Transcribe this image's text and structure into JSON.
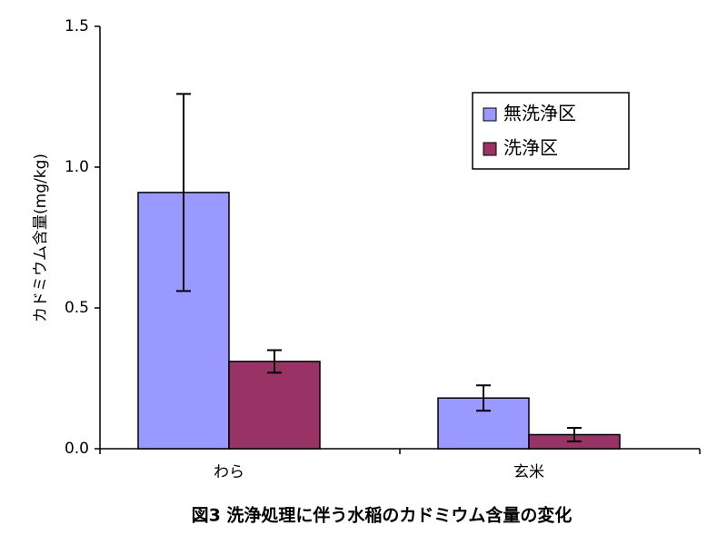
{
  "chart_data": {
    "type": "bar",
    "title": "図3 洗浄処理に伴う水稲のカドミウム含量の変化",
    "y_label": "カドミウム含量(mg/kg)",
    "categories": [
      "わら",
      "玄米"
    ],
    "series": [
      {
        "name": "無洗浄区",
        "color": "#9999ff",
        "values": [
          0.91,
          0.18
        ],
        "errors": [
          0.35,
          0.045
        ]
      },
      {
        "name": "洗浄区",
        "color": "#993366",
        "values": [
          0.31,
          0.05
        ],
        "errors": [
          0.04,
          0.024
        ]
      }
    ],
    "ylim": [
      0,
      1.5
    ],
    "yticks": [
      {
        "value": 0,
        "label": "0.0"
      },
      {
        "value": 0.5,
        "label": "0.5"
      },
      {
        "value": 1,
        "label": "1.0"
      },
      {
        "value": 1.5,
        "label": "1.5"
      }
    ],
    "grid": false,
    "legend": "upper-right"
  }
}
